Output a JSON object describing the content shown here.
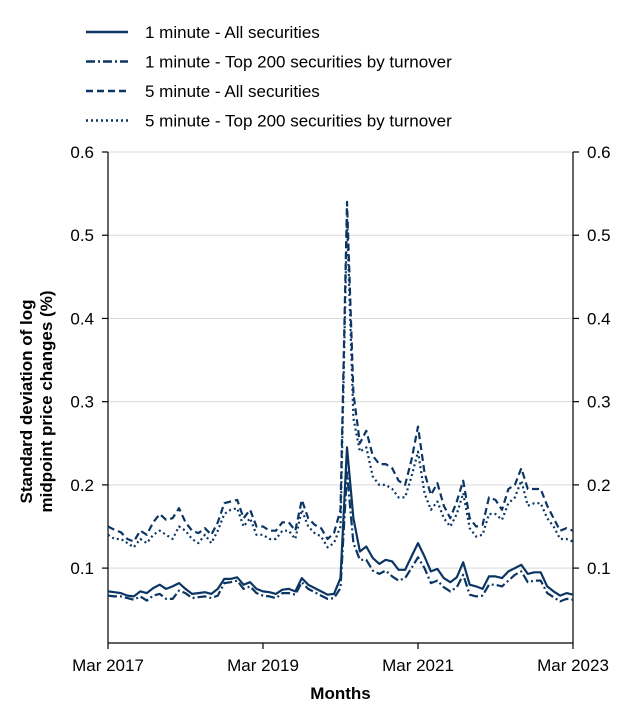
{
  "chart_data": {
    "type": "line",
    "title": "",
    "xlabel": "Months",
    "ylabel_lines": [
      "Standard deviation of log",
      "midpoint price changes (%)"
    ],
    "x_ticks": [
      "Mar 2017",
      "Mar 2019",
      "Mar 2021",
      "Mar 2023"
    ],
    "y_ticks": [
      "0.1",
      "0.2",
      "0.3",
      "0.4",
      "0.5",
      "0.6"
    ],
    "ylim": [
      0.01,
      0.6
    ],
    "x_range_months": [
      0,
      72
    ],
    "grid": "horizontal",
    "legend_placement": "top-left, above plot",
    "line_color": "#0b3563",
    "series": [
      {
        "name": "1 minute - All securities",
        "style": "solid",
        "values": [
          0.072,
          0.071,
          0.07,
          0.067,
          0.066,
          0.072,
          0.07,
          0.076,
          0.08,
          0.075,
          0.078,
          0.082,
          0.075,
          0.069,
          0.07,
          0.071,
          0.069,
          0.075,
          0.087,
          0.087,
          0.089,
          0.08,
          0.083,
          0.075,
          0.072,
          0.071,
          0.069,
          0.074,
          0.075,
          0.072,
          0.088,
          0.08,
          0.076,
          0.072,
          0.068,
          0.069,
          0.088,
          0.245,
          0.16,
          0.12,
          0.126,
          0.112,
          0.105,
          0.11,
          0.108,
          0.098,
          0.098,
          0.114,
          0.13,
          0.114,
          0.096,
          0.099,
          0.088,
          0.083,
          0.089,
          0.107,
          0.08,
          0.078,
          0.075,
          0.09,
          0.09,
          0.088,
          0.096,
          0.1,
          0.104,
          0.093,
          0.095,
          0.095,
          0.078,
          0.072,
          0.067,
          0.07,
          0.068
        ]
      },
      {
        "name": "1 minute - Top 200 securities by turnover",
        "style": "dashdot",
        "values": [
          0.067,
          0.066,
          0.066,
          0.064,
          0.062,
          0.066,
          0.061,
          0.067,
          0.069,
          0.063,
          0.063,
          0.073,
          0.07,
          0.064,
          0.065,
          0.066,
          0.064,
          0.067,
          0.082,
          0.083,
          0.085,
          0.075,
          0.078,
          0.07,
          0.067,
          0.066,
          0.064,
          0.07,
          0.07,
          0.068,
          0.083,
          0.075,
          0.071,
          0.067,
          0.063,
          0.064,
          0.076,
          0.215,
          0.13,
          0.11,
          0.11,
          0.097,
          0.093,
          0.097,
          0.09,
          0.085,
          0.088,
          0.1,
          0.113,
          0.1,
          0.082,
          0.085,
          0.077,
          0.072,
          0.077,
          0.092,
          0.068,
          0.066,
          0.067,
          0.08,
          0.08,
          0.078,
          0.085,
          0.092,
          0.096,
          0.083,
          0.085,
          0.085,
          0.07,
          0.065,
          0.06,
          0.063,
          0.062
        ]
      },
      {
        "name": "5 minute - All securities",
        "style": "dashed",
        "values": [
          0.15,
          0.146,
          0.143,
          0.135,
          0.132,
          0.145,
          0.14,
          0.155,
          0.165,
          0.158,
          0.16,
          0.172,
          0.155,
          0.145,
          0.142,
          0.148,
          0.14,
          0.155,
          0.178,
          0.18,
          0.182,
          0.16,
          0.17,
          0.15,
          0.15,
          0.145,
          0.145,
          0.155,
          0.155,
          0.145,
          0.182,
          0.16,
          0.152,
          0.148,
          0.135,
          0.142,
          0.17,
          0.54,
          0.31,
          0.25,
          0.265,
          0.235,
          0.225,
          0.225,
          0.22,
          0.205,
          0.2,
          0.23,
          0.27,
          0.215,
          0.188,
          0.202,
          0.175,
          0.16,
          0.18,
          0.205,
          0.16,
          0.15,
          0.152,
          0.185,
          0.182,
          0.17,
          0.195,
          0.2,
          0.22,
          0.195,
          0.195,
          0.195,
          0.175,
          0.16,
          0.145,
          0.148,
          0.145
        ]
      },
      {
        "name": "5 minute - Top 200 securities by turnover",
        "style": "dotted",
        "values": [
          0.14,
          0.135,
          0.135,
          0.13,
          0.125,
          0.135,
          0.13,
          0.14,
          0.145,
          0.14,
          0.135,
          0.15,
          0.145,
          0.135,
          0.13,
          0.14,
          0.13,
          0.145,
          0.165,
          0.17,
          0.172,
          0.15,
          0.16,
          0.14,
          0.14,
          0.135,
          0.135,
          0.145,
          0.145,
          0.135,
          0.17,
          0.15,
          0.142,
          0.138,
          0.125,
          0.13,
          0.15,
          0.52,
          0.28,
          0.24,
          0.245,
          0.21,
          0.2,
          0.2,
          0.195,
          0.185,
          0.185,
          0.21,
          0.24,
          0.19,
          0.17,
          0.18,
          0.16,
          0.15,
          0.165,
          0.19,
          0.148,
          0.138,
          0.14,
          0.165,
          0.165,
          0.158,
          0.178,
          0.185,
          0.205,
          0.175,
          0.178,
          0.178,
          0.16,
          0.15,
          0.135,
          0.135,
          0.132
        ]
      }
    ]
  }
}
